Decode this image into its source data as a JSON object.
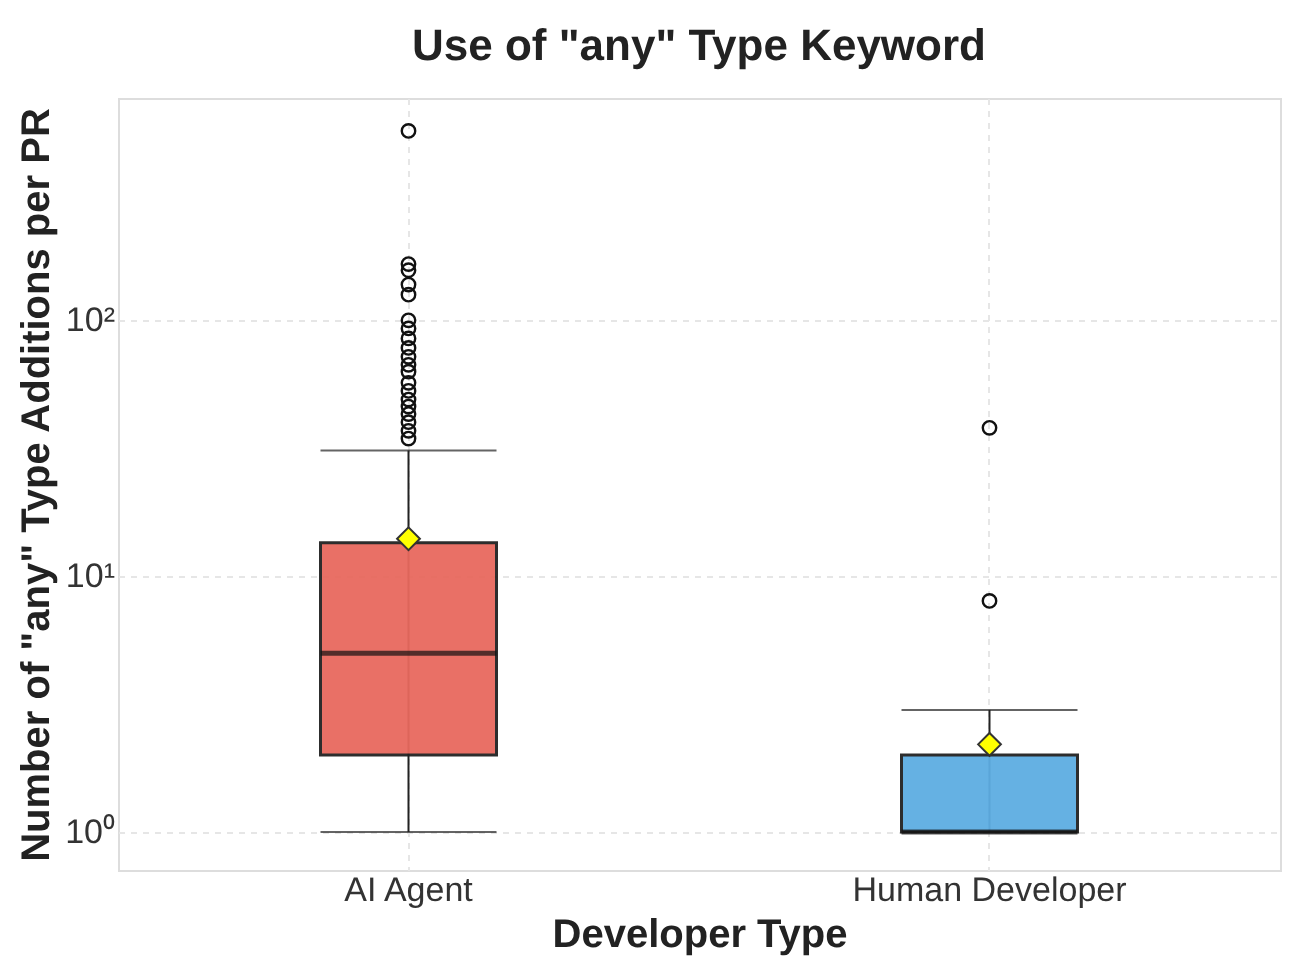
{
  "chart_data": {
    "type": "box",
    "title": "Use of \"any\" Type Keyword",
    "xlabel": "Developer Type",
    "ylabel": "Number of \"any\" Type Additions per PR",
    "categories": [
      "AI Agent",
      "Human Developer"
    ],
    "colors": [
      "#e8695e",
      "#5dade2"
    ],
    "boxes": [
      {
        "low": 1,
        "q1": 2,
        "median": 5,
        "q3": 13.5,
        "high": 31,
        "mean": 14,
        "outliers": [
          550,
          166,
          157,
          138,
          126,
          100,
          93,
          85,
          78,
          72,
          67,
          63,
          57,
          53,
          49,
          46,
          43,
          40,
          37,
          34.5
        ]
      },
      {
        "low": 1,
        "q1": 1,
        "median": 1,
        "q3": 2,
        "high": 3,
        "mean": 2.2,
        "outliers": [
          8,
          38
        ]
      }
    ],
    "log": true,
    "ylim": [
      0.71,
      740
    ],
    "yticks": [
      {
        "value": 1,
        "label": "10⁰"
      },
      {
        "value": 10,
        "label": "10¹"
      },
      {
        "value": 100,
        "label": "10²"
      }
    ],
    "grid": true
  }
}
